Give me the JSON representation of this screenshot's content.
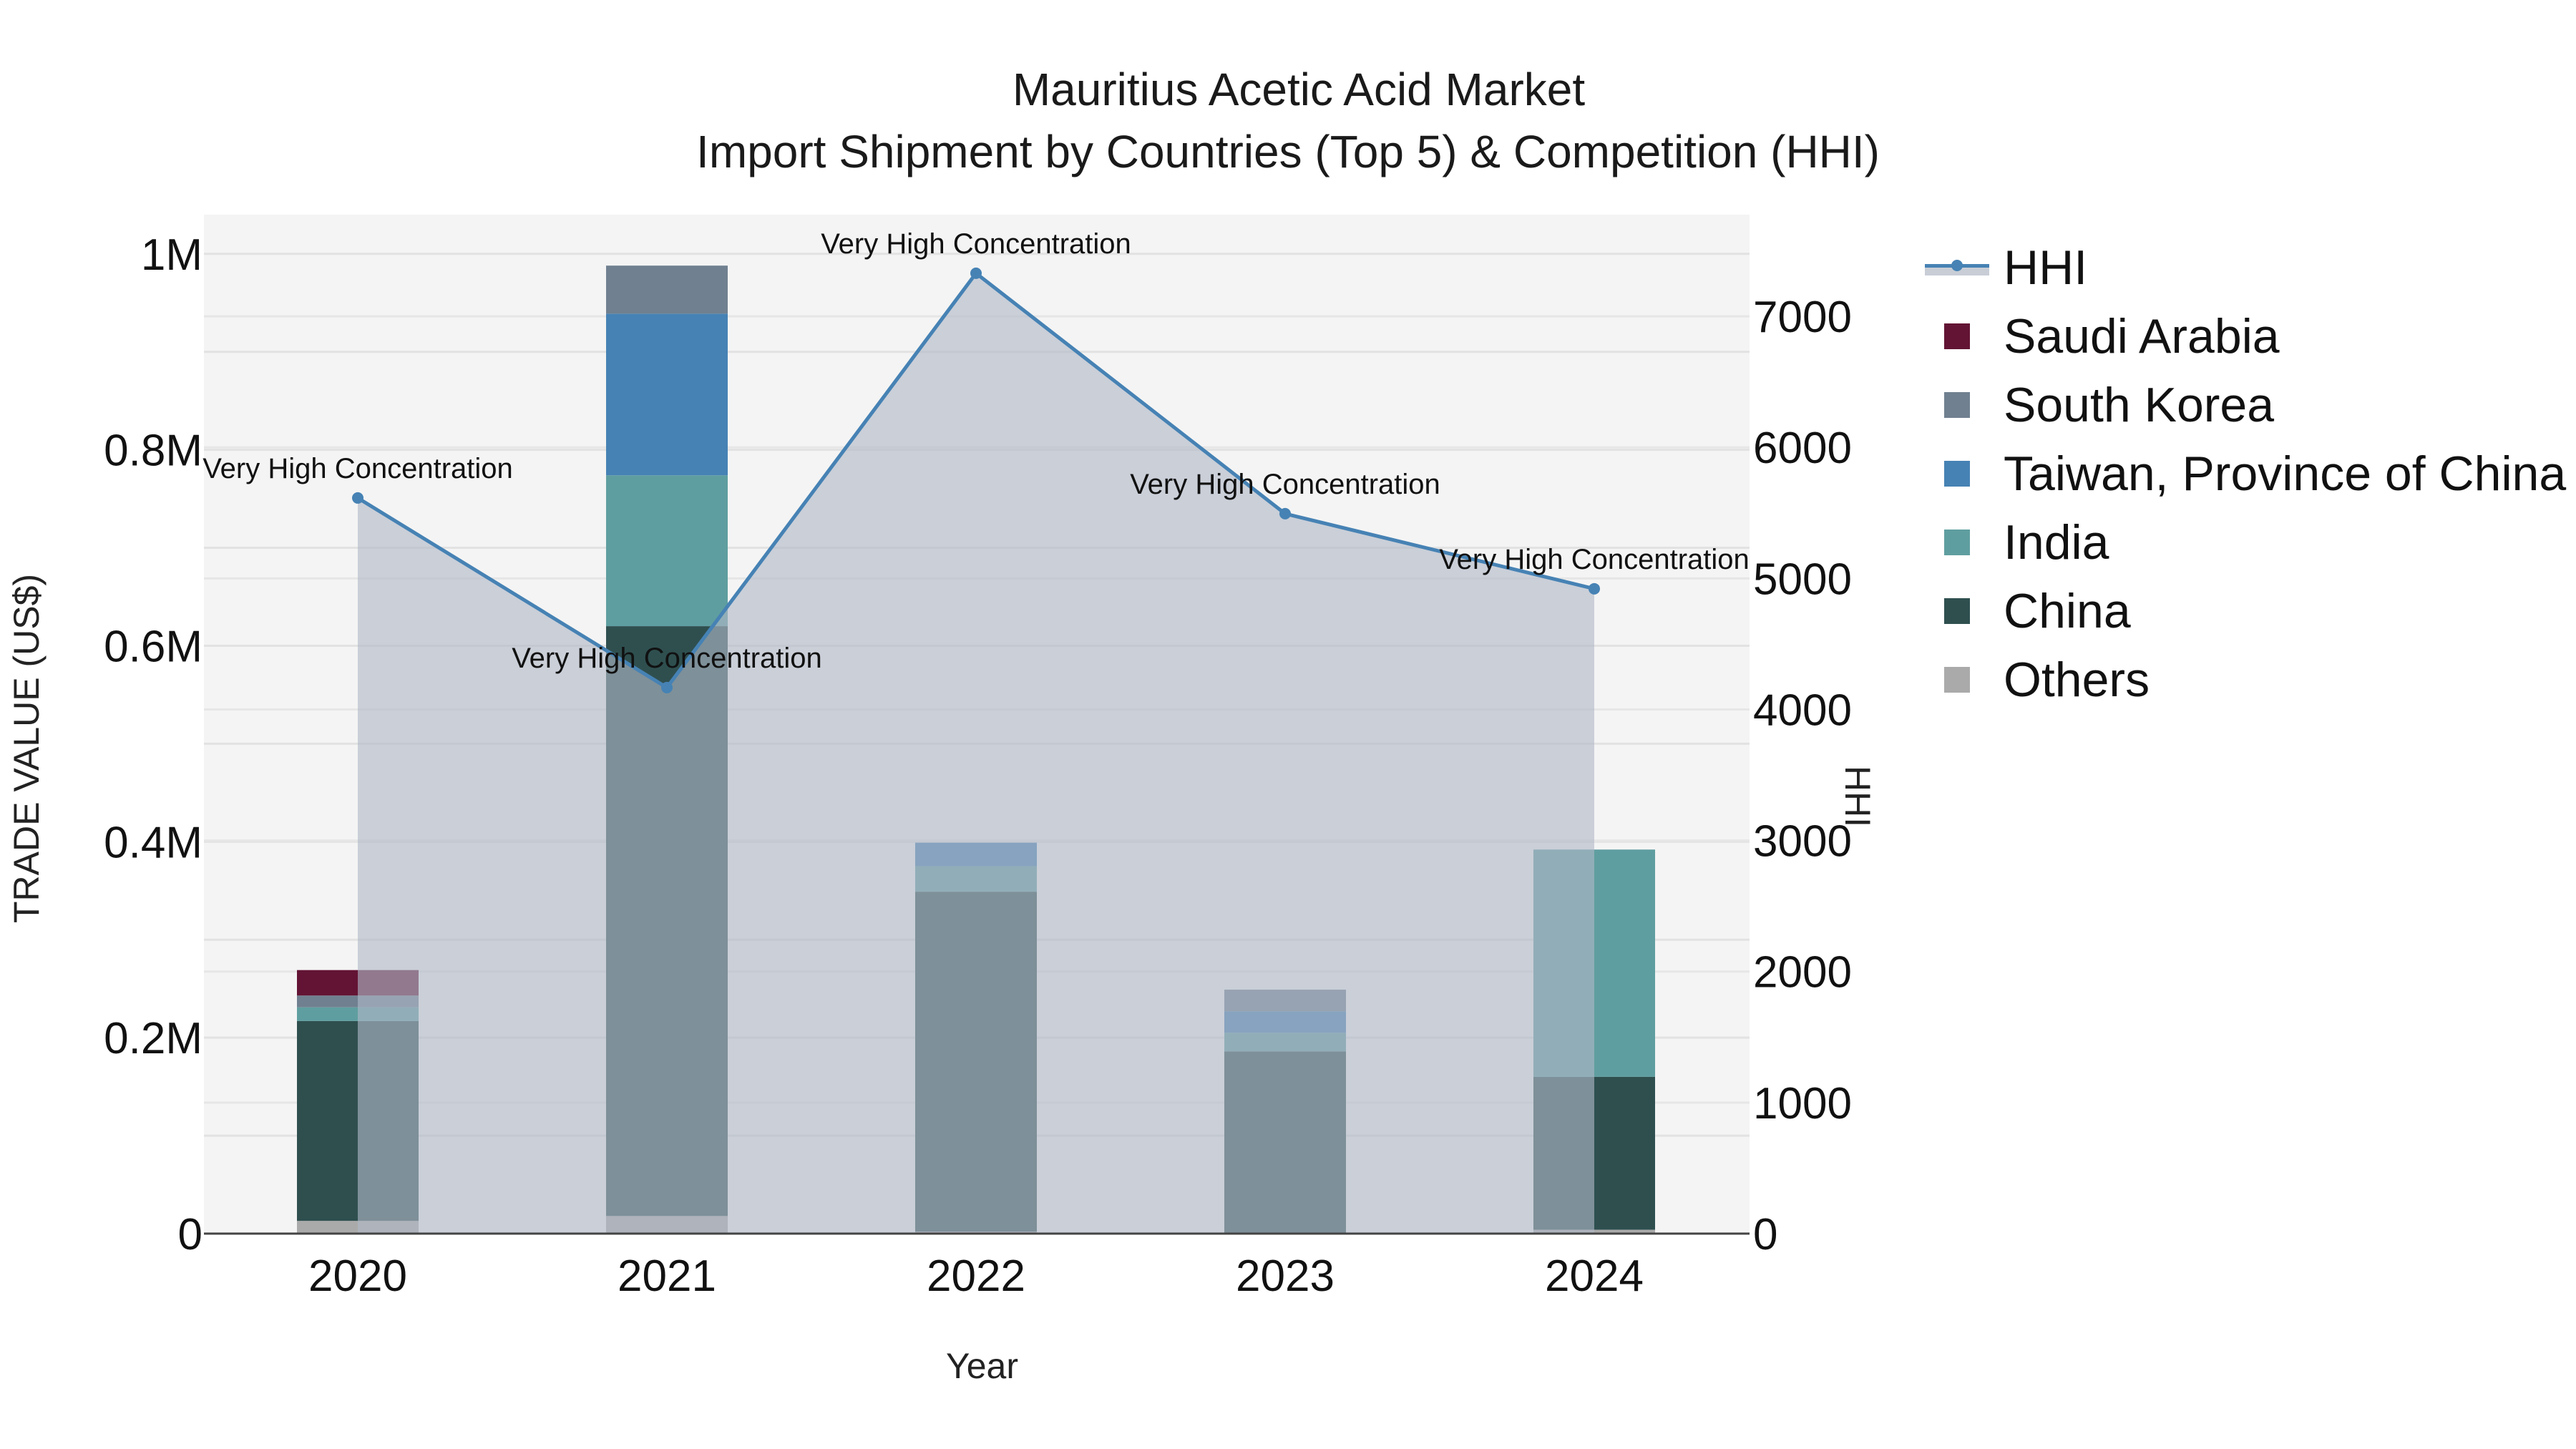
{
  "title": {
    "line1": "Mauritius Acetic Acid Market",
    "line2": "Import Shipment by Countries (Top 5) & Competition (HHI)"
  },
  "axes": {
    "x_title": "Year",
    "y_left_title": "TRADE VALUE (US$)",
    "y_right_title": "HHI",
    "y_left_ticks": [
      "0",
      "0.2M",
      "0.4M",
      "0.6M",
      "0.8M",
      "1M"
    ],
    "y_right_ticks": [
      "0",
      "1000",
      "2000",
      "3000",
      "4000",
      "5000",
      "6000",
      "7000"
    ],
    "x_ticks": [
      "2020",
      "2021",
      "2022",
      "2023",
      "2024"
    ]
  },
  "legend": [
    {
      "name": "HHI",
      "type": "line",
      "color": "#4682b4"
    },
    {
      "name": "Saudi Arabia",
      "type": "bar",
      "color": "#631434"
    },
    {
      "name": "South Korea",
      "type": "bar",
      "color": "#708090"
    },
    {
      "name": "Taiwan, Province of China",
      "type": "bar",
      "color": "#4682b4"
    },
    {
      "name": "India",
      "type": "bar",
      "color": "#5f9ea0"
    },
    {
      "name": "China",
      "type": "bar",
      "color": "#2f4f4f"
    },
    {
      "name": "Others",
      "type": "bar",
      "color": "#aaaaaa"
    }
  ],
  "annotation_text": "Very High Concentration",
  "chart_data": {
    "type": "bar",
    "title": "Mauritius Acetic Acid Market — Import Shipment by Countries (Top 5) & Competition (HHI)",
    "xlabel": "Year",
    "ylabel": "TRADE VALUE (US$)",
    "y2label": "HHI",
    "categories": [
      "2020",
      "2021",
      "2022",
      "2023",
      "2024"
    ],
    "ylim": [
      0,
      1040000
    ],
    "y2lim": [
      0,
      7776
    ],
    "stacked": true,
    "grid": true,
    "legend_position": "right",
    "series": [
      {
        "name": "Others",
        "color": "#aaaaaa",
        "values": [
          13000,
          18000,
          2000,
          1000,
          4000
        ]
      },
      {
        "name": "China",
        "color": "#2f4f4f",
        "values": [
          204000,
          602000,
          347000,
          185000,
          156000
        ]
      },
      {
        "name": "India",
        "color": "#5f9ea0",
        "values": [
          14000,
          154000,
          26000,
          19000,
          232000
        ]
      },
      {
        "name": "Taiwan, Province of China",
        "color": "#4682b4",
        "values": [
          0,
          165000,
          24000,
          22000,
          0
        ]
      },
      {
        "name": "South Korea",
        "color": "#708090",
        "values": [
          12000,
          49000,
          0,
          22000,
          0
        ]
      },
      {
        "name": "Saudi Arabia",
        "color": "#631434",
        "values": [
          26000,
          0,
          0,
          0,
          0
        ]
      }
    ],
    "hhi": {
      "name": "HHI",
      "type": "line+area",
      "axis": "right",
      "color": "#4682b4",
      "fill": "rgba(176,184,198,0.6)",
      "values": [
        5614,
        4167,
        7329,
        5494,
        4921
      ],
      "labels": [
        "Very High Concentration",
        "Very High Concentration",
        "Very High Concentration",
        "Very High Concentration",
        "Very High Concentration"
      ]
    }
  }
}
